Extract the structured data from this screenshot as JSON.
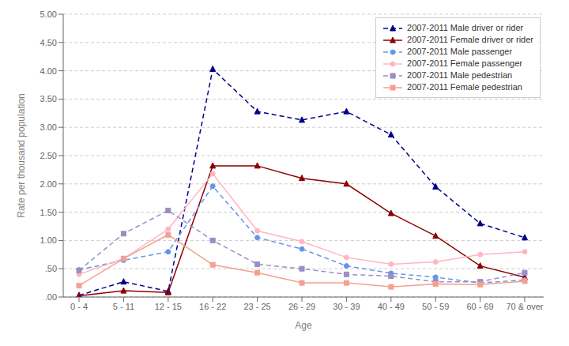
{
  "chart_data": {
    "type": "line",
    "xlabel": "Age",
    "ylabel": "Rate per thousand population",
    "categories": [
      "0 - 4",
      "5 - 11",
      "12 - 15",
      "16 - 22",
      "23 - 25",
      "26 - 29",
      "30 - 39",
      "40 - 49",
      "50 - 59",
      "60 - 69",
      "70 & over"
    ],
    "series": [
      {
        "name": "2007-2011 Male driver or rider",
        "color": "#00008B",
        "line_style": "dashed",
        "marker": "triangle",
        "values": [
          0.03,
          0.27,
          0.1,
          4.03,
          3.28,
          3.13,
          3.28,
          2.87,
          1.95,
          1.3,
          1.05
        ]
      },
      {
        "name": "2007-2011 Female driver or rider",
        "color": "#8B0000",
        "line_style": "solid",
        "marker": "triangle",
        "values": [
          0.02,
          0.11,
          0.08,
          2.32,
          2.32,
          2.1,
          2.0,
          1.48,
          1.08,
          0.55,
          0.35
        ]
      },
      {
        "name": "2007-2011 Male passenger",
        "color": "#6495ED",
        "line_style": "dashed",
        "marker": "circle",
        "values": [
          0.48,
          0.65,
          0.8,
          1.96,
          1.05,
          0.85,
          0.55,
          0.42,
          0.35,
          0.25,
          0.3
        ]
      },
      {
        "name": "2007-2011 Female passenger",
        "color": "#FFB6C1",
        "line_style": "solid",
        "marker": "circle",
        "values": [
          0.4,
          0.68,
          1.2,
          2.18,
          1.17,
          0.98,
          0.7,
          0.58,
          0.62,
          0.75,
          0.8
        ]
      },
      {
        "name": "2007-2011 Male pedestrian",
        "color": "#9B8EC4",
        "line_style": "dashed",
        "marker": "square",
        "values": [
          0.47,
          1.12,
          1.53,
          1.0,
          0.58,
          0.5,
          0.4,
          0.37,
          0.27,
          0.27,
          0.43
        ]
      },
      {
        "name": "2007-2011 Female pedestrian",
        "color": "#F4A090",
        "line_style": "solid",
        "marker": "square",
        "values": [
          0.2,
          0.68,
          1.1,
          0.57,
          0.43,
          0.25,
          0.25,
          0.18,
          0.23,
          0.22,
          0.28
        ]
      }
    ],
    "ylim": [
      0.0,
      5.0
    ],
    "yticks": [
      {
        "value": 0.0,
        "label": ".00"
      },
      {
        "value": 0.5,
        "label": ".50"
      },
      {
        "value": 1.0,
        "label": "1.00"
      },
      {
        "value": 1.5,
        "label": "1.50"
      },
      {
        "value": 2.0,
        "label": "2.00"
      },
      {
        "value": 2.5,
        "label": "2.50"
      },
      {
        "value": 3.0,
        "label": "3.00"
      },
      {
        "value": 3.5,
        "label": "3.50"
      },
      {
        "value": 4.0,
        "label": "4.00"
      },
      {
        "value": 4.5,
        "label": "4.50"
      },
      {
        "value": 5.0,
        "label": "5.00"
      }
    ],
    "grid": true,
    "legend": "upper right"
  }
}
